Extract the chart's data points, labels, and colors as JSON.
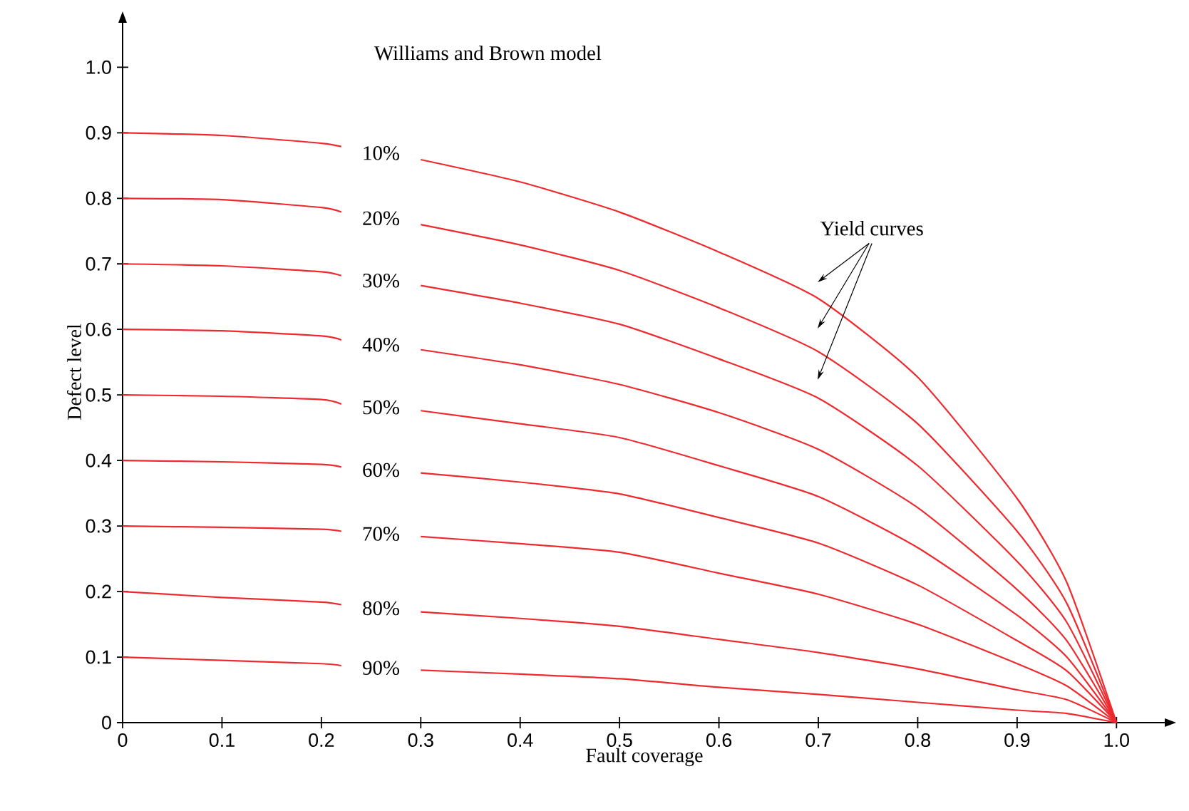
{
  "chart_data": {
    "type": "line",
    "title": "Williams and Brown model",
    "xlabel": "Fault coverage",
    "ylabel": "Defect level",
    "x": [
      0,
      0.1,
      0.2,
      0.22,
      0.26,
      0.3,
      0.4,
      0.5,
      0.6,
      0.7,
      0.8,
      0.9,
      0.95,
      1.0
    ],
    "series": [
      {
        "name": "10%",
        "color": "#ee2a2f",
        "values": [
          0.9,
          0.896,
          0.884,
          0.879,
          null,
          0.859,
          0.825,
          0.779,
          0.718,
          0.647,
          0.527,
          0.342,
          0.214,
          0
        ]
      },
      {
        "name": "20%",
        "color": "#ee2a2f",
        "values": [
          0.8,
          0.798,
          0.786,
          0.779,
          null,
          0.76,
          0.729,
          0.69,
          0.633,
          0.566,
          0.456,
          0.292,
          0.182,
          0
        ]
      },
      {
        "name": "30%",
        "color": "#ee2a2f",
        "values": [
          0.7,
          0.697,
          0.688,
          0.682,
          null,
          0.667,
          0.64,
          0.608,
          0.555,
          0.495,
          0.392,
          0.246,
          0.153,
          0
        ]
      },
      {
        "name": "40%",
        "color": "#ee2a2f",
        "values": [
          0.6,
          0.598,
          0.59,
          0.584,
          null,
          0.569,
          0.546,
          0.516,
          0.473,
          0.417,
          0.328,
          0.203,
          0.125,
          0
        ]
      },
      {
        "name": "50%",
        "color": "#ee2a2f",
        "values": [
          0.5,
          0.498,
          0.493,
          0.486,
          null,
          0.476,
          0.456,
          0.435,
          0.392,
          0.345,
          0.267,
          0.164,
          0.1,
          0
        ]
      },
      {
        "name": "60%",
        "color": "#ee2a2f",
        "values": [
          0.4,
          0.398,
          0.394,
          0.39,
          null,
          0.381,
          0.367,
          0.349,
          0.313,
          0.274,
          0.21,
          0.125,
          0.079,
          0
        ]
      },
      {
        "name": "70%",
        "color": "#ee2a2f",
        "values": [
          0.3,
          0.298,
          0.295,
          0.292,
          null,
          0.284,
          0.273,
          0.26,
          0.228,
          0.196,
          0.15,
          0.09,
          0.056,
          0
        ]
      },
      {
        "name": "80%",
        "color": "#ee2a2f",
        "values": [
          0.2,
          0.191,
          0.184,
          0.18,
          null,
          0.169,
          0.159,
          0.147,
          0.127,
          0.107,
          0.082,
          0.05,
          0.035,
          0
        ]
      },
      {
        "name": "90%",
        "color": "#ee2a2f",
        "values": [
          0.1,
          0.095,
          0.09,
          0.087,
          null,
          0.08,
          0.074,
          0.067,
          0.054,
          0.043,
          0.031,
          0.019,
          0.014,
          0
        ]
      }
    ],
    "annotations": [
      "Yield curves"
    ],
    "xlim": [
      0,
      1.05
    ],
    "ylim": [
      0,
      1.07
    ],
    "xticks": [
      0,
      0.1,
      0.2,
      0.3,
      0.4,
      0.5,
      0.6,
      0.7,
      0.8,
      0.9,
      {
        "value": 1,
        "label": "1.0"
      }
    ],
    "yticks": [
      0,
      0.1,
      0.2,
      0.3,
      0.4,
      0.5,
      0.6,
      0.7,
      0.8,
      0.9,
      {
        "value": 1,
        "label": "1.0"
      }
    ],
    "grid": false,
    "legend": false,
    "marker": "none",
    "line_style": "solid"
  }
}
